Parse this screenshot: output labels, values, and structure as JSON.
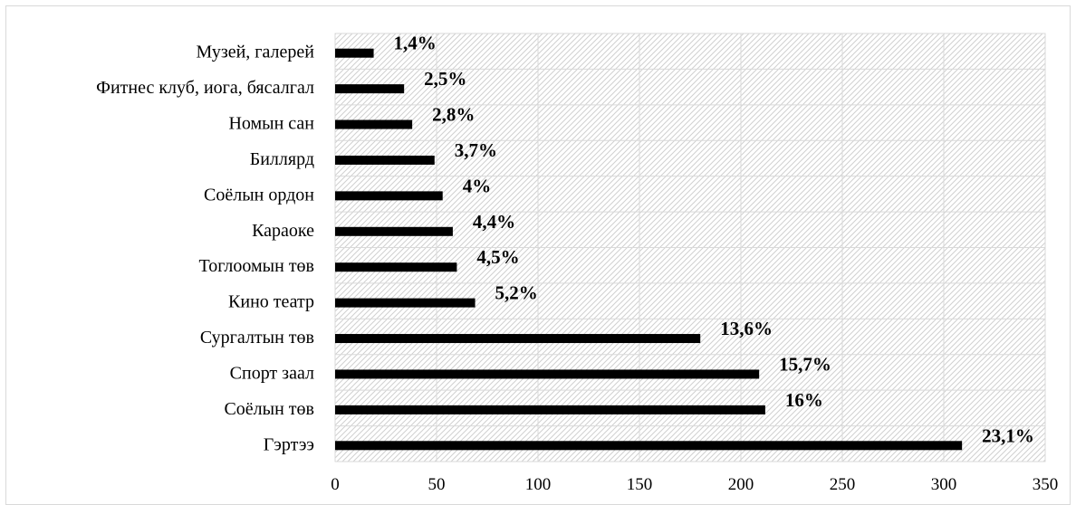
{
  "chart_data": {
    "type": "bar",
    "orientation": "horizontal",
    "categories": [
      "Музей, галерей",
      "Фитнес клуб, иога, бясалгал",
      "Номын сан",
      "Биллярд",
      "Соёлын ордон",
      "Караоке",
      "Тоглоомын төв",
      "Кино театр",
      "Сургалтын төв",
      "Спорт заал",
      "Соёлын төв",
      "Гэртээ"
    ],
    "values": [
      19,
      34,
      38,
      49,
      53,
      58,
      60,
      69,
      180,
      209,
      212,
      309
    ],
    "data_labels": [
      "1,4%",
      "2,5%",
      "2,8%",
      "3,7%",
      "4%",
      "4,4%",
      "4,5%",
      "5,2%",
      "13,6%",
      "15,7%",
      "16%",
      "23,1%"
    ],
    "xlim": [
      0,
      350
    ],
    "x_ticks": [
      "0",
      "50",
      "100",
      "150",
      "200",
      "250",
      "300",
      "350"
    ],
    "title": "",
    "xlabel": "",
    "ylabel": "",
    "grid": true,
    "background_pattern": "diagonal-hatch",
    "colors": {
      "bar": "#000000",
      "grid": "#d9d9d9",
      "hatch": "#d0d0d0",
      "frame": "#d9d9d9"
    }
  }
}
